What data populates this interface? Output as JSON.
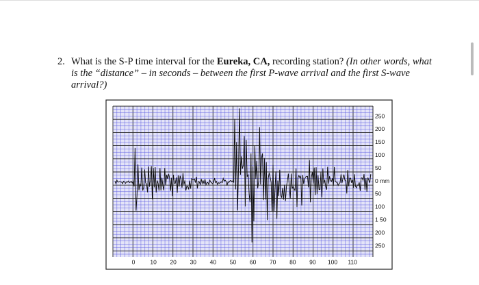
{
  "question": {
    "number": "2.",
    "text_1": "What is the S-P time interval for the",
    "station": "Eureka, CA,",
    "text_2": "recording station?",
    "hint": "(In other words, what is the “distance” – in seconds – between the first P-wave arrival and the first S-wave arrival?)"
  },
  "figure": {
    "x_labels": [
      "0",
      "10",
      "20",
      "30",
      "40",
      "50",
      "60",
      "70",
      "80",
      "90",
      "100",
      "110"
    ],
    "y_labels": [
      "250",
      "200",
      "150",
      "100",
      "50",
      "0 mm",
      "50",
      "100",
      "1 50",
      "200",
      "250"
    ]
  }
}
